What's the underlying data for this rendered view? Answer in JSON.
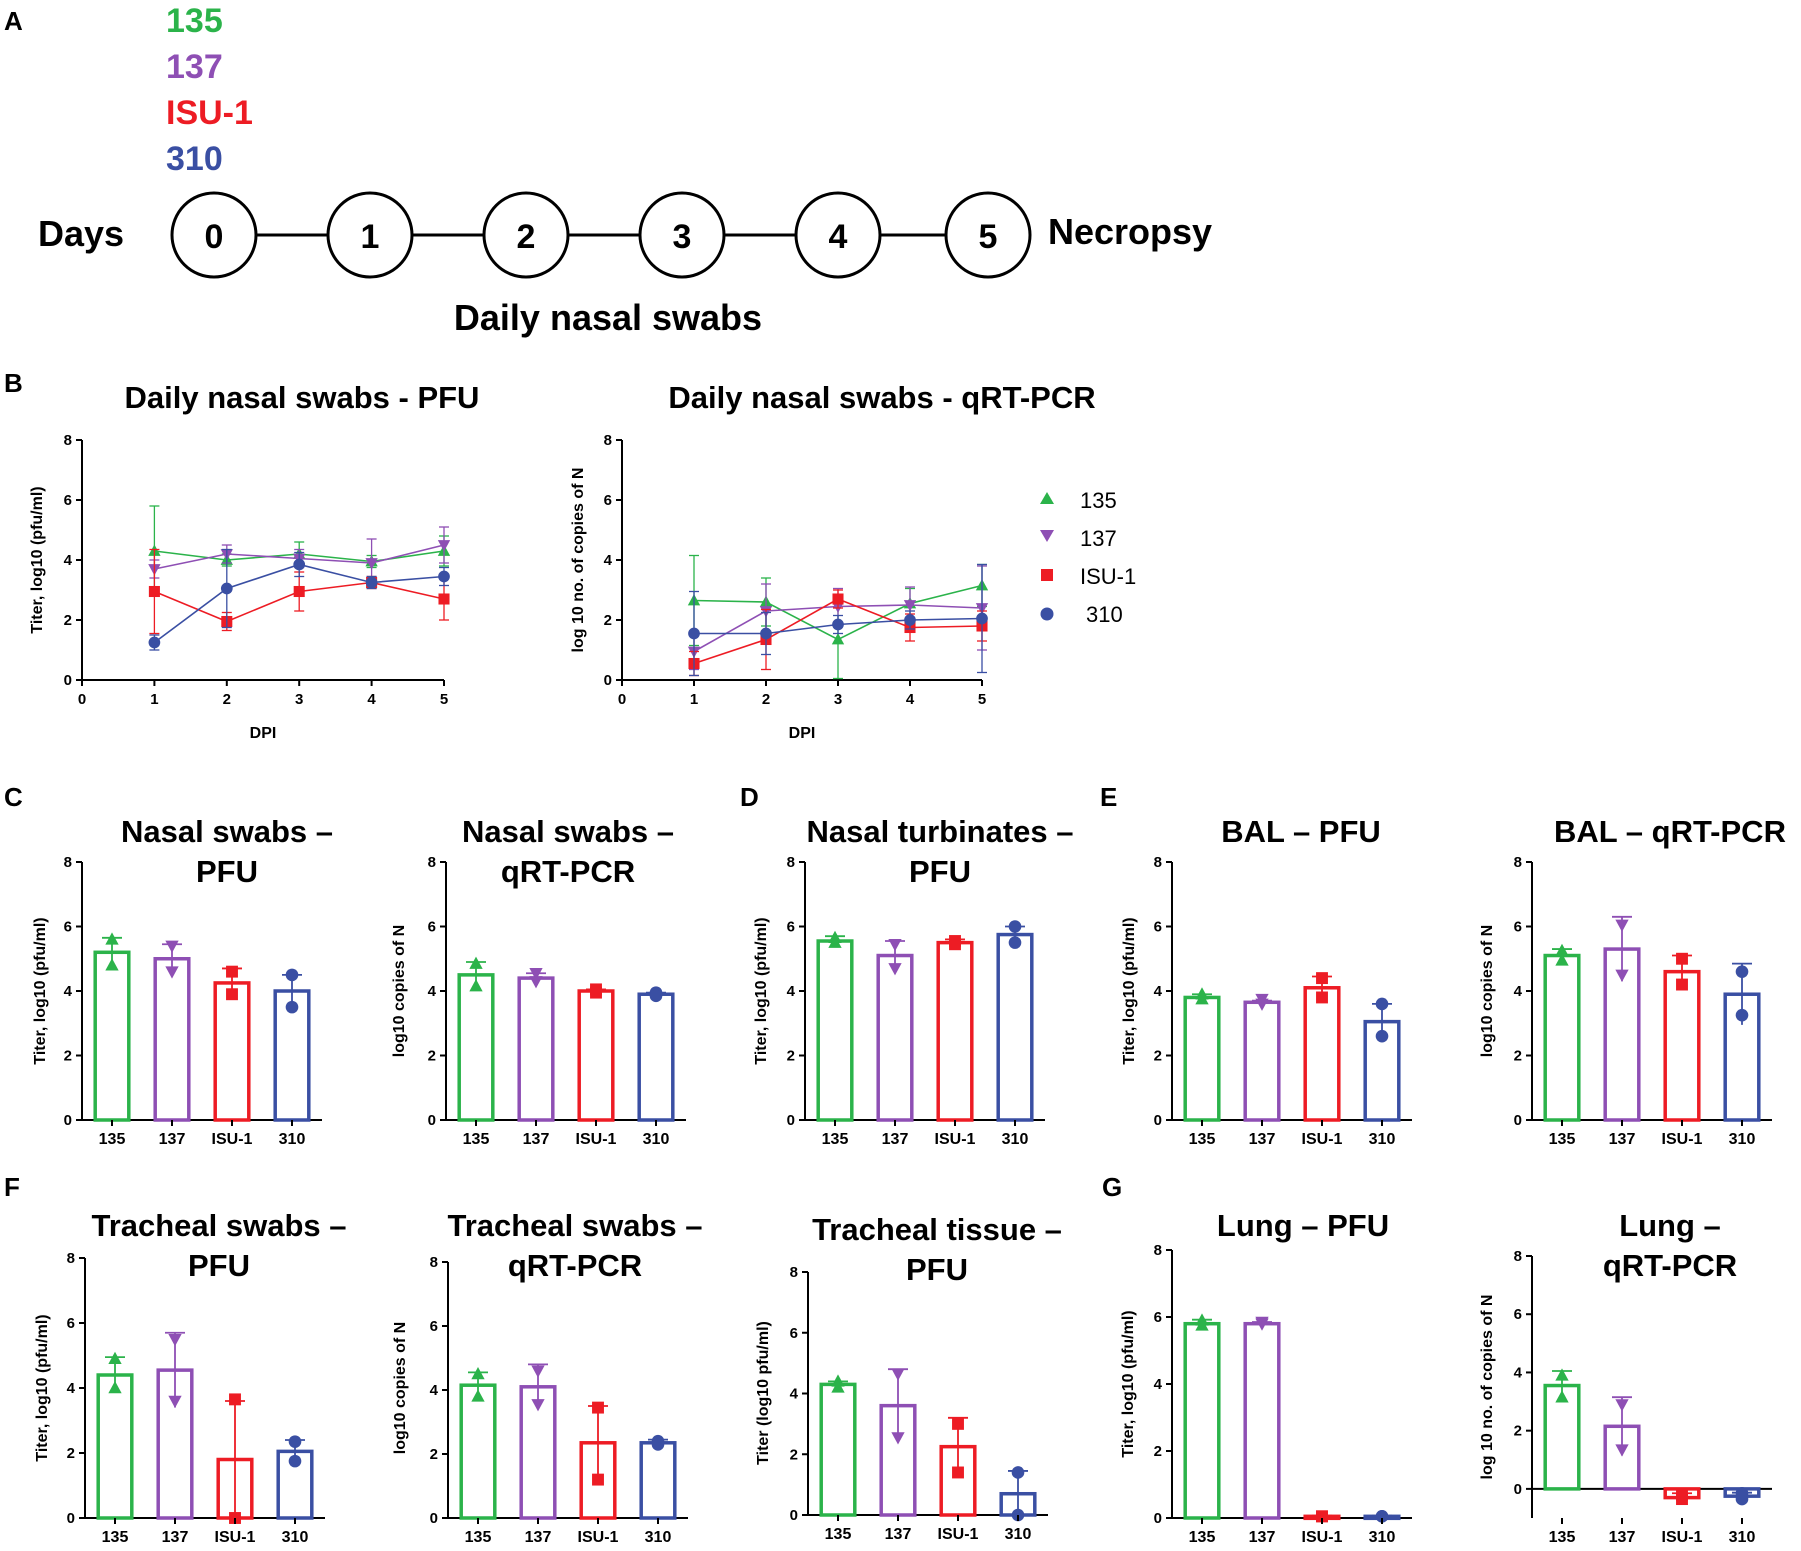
{
  "colors": {
    "g135": "#2bb34a",
    "g137": "#8e4fb4",
    "gISU": "#ed1c24",
    "g310": "#3a4fa3",
    "axis": "#000000"
  },
  "markers": {
    "g135": "triangle",
    "g137": "triangle-down",
    "gISU": "square",
    "g310": "circle"
  },
  "panel_letters": {
    "A": "A",
    "B": "B",
    "C": "C",
    "D": "D",
    "E": "E",
    "F": "F",
    "G": "G"
  },
  "timeline": {
    "strains": [
      {
        "key": "g135",
        "label": "135"
      },
      {
        "key": "g137",
        "label": "137"
      },
      {
        "key": "gISU",
        "label": "ISU-1"
      },
      {
        "key": "g310",
        "label": "310"
      }
    ],
    "days_label": "Days",
    "days": [
      "0",
      "1",
      "2",
      "3",
      "4",
      "5"
    ],
    "end_label": "Necropsy",
    "caption": "Daily nasal swabs"
  },
  "legend": [
    {
      "key": "g135",
      "label": "135"
    },
    {
      "key": "g137",
      "label": "137"
    },
    {
      "key": "gISU",
      "label": "ISU-1"
    },
    {
      "key": "g310",
      "label": "310"
    }
  ],
  "chart_data": [
    {
      "id": "B1",
      "type": "line",
      "title": "Daily nasal swabs - PFU",
      "xlabel": "DPI",
      "ylabel": "Titer, log10 (pfu/ml)",
      "x": [
        1,
        2,
        3,
        4,
        5
      ],
      "xlim": [
        0,
        5
      ],
      "ylim": [
        0,
        8
      ],
      "xticks": [
        "0",
        "1",
        "2",
        "3",
        "4",
        "5"
      ],
      "yticks": [
        "0",
        "2",
        "4",
        "6",
        "8"
      ],
      "series": [
        {
          "name": "135",
          "key": "g135",
          "values": [
            4.3,
            4.0,
            4.2,
            3.95,
            4.3
          ],
          "err": [
            1.5,
            0.2,
            0.4,
            0.2,
            0.5
          ]
        },
        {
          "name": "137",
          "key": "g137",
          "values": [
            3.7,
            4.2,
            4.05,
            3.9,
            4.5
          ],
          "err": [
            0.3,
            0.3,
            0.3,
            0.8,
            0.6
          ]
        },
        {
          "name": "ISU-1",
          "key": "gISU",
          "values": [
            2.95,
            1.95,
            2.95,
            3.25,
            2.7
          ],
          "err": [
            1.4,
            0.3,
            0.65,
            0.2,
            0.7
          ]
        },
        {
          "name": "310",
          "key": "g310",
          "values": [
            1.25,
            3.05,
            3.85,
            3.25,
            3.45
          ],
          "err": [
            0.25,
            1.3,
            0.4,
            0.2,
            0.3
          ]
        }
      ]
    },
    {
      "id": "B2",
      "type": "line",
      "title": "Daily nasal swabs - qRT-PCR",
      "xlabel": "DPI",
      "ylabel": "log 10 no. of copies of N",
      "x": [
        1,
        2,
        3,
        4,
        5
      ],
      "xlim": [
        0,
        5
      ],
      "ylim": [
        0,
        8
      ],
      "xticks": [
        "0",
        "1",
        "2",
        "3",
        "4",
        "5"
      ],
      "yticks": [
        "0",
        "2",
        "4",
        "6",
        "8"
      ],
      "series": [
        {
          "name": "135",
          "key": "g135",
          "values": [
            2.65,
            2.6,
            1.35,
            2.55,
            3.15
          ],
          "err": [
            1.5,
            0.8,
            1.3,
            0.5,
            0.7
          ]
        },
        {
          "name": "137",
          "key": "g137",
          "values": [
            0.95,
            2.3,
            2.45,
            2.5,
            2.4
          ],
          "err": [
            0.6,
            0.9,
            0.6,
            0.6,
            1.4
          ]
        },
        {
          "name": "ISU-1",
          "key": "gISU",
          "values": [
            0.55,
            1.35,
            2.7,
            1.75,
            1.8
          ],
          "err": [
            0.4,
            1.0,
            0.3,
            0.45,
            0.5
          ]
        },
        {
          "name": "310",
          "key": "g310",
          "values": [
            1.55,
            1.55,
            1.85,
            2.0,
            2.05
          ],
          "err": [
            1.4,
            0.7,
            0.3,
            0.3,
            1.8
          ]
        }
      ]
    },
    {
      "id": "C1",
      "type": "bar",
      "title": [
        "Nasal swabs –",
        "PFU"
      ],
      "ylabel": "Titer, log10 (pfu/ml)",
      "ylim": [
        0,
        8
      ],
      "yticks": [
        "0",
        "2",
        "4",
        "6",
        "8"
      ],
      "categories": [
        "135",
        "137",
        "ISU-1",
        "310"
      ],
      "values": [
        5.2,
        5.0,
        4.25,
        4.0
      ],
      "err": [
        0.45,
        0.45,
        0.45,
        0.5
      ],
      "points": [
        [
          5.6,
          4.8
        ],
        [
          5.4,
          4.6
        ],
        [
          4.6,
          3.9
        ],
        [
          4.5,
          3.5
        ]
      ]
    },
    {
      "id": "C2",
      "type": "bar",
      "title": [
        "Nasal swabs –",
        "qRT-PCR"
      ],
      "ylabel": "log10 copies of N",
      "ylim": [
        0,
        8
      ],
      "yticks": [
        "0",
        "2",
        "4",
        "6",
        "8"
      ],
      "categories": [
        "135",
        "137",
        "ISU-1",
        "310"
      ],
      "values": [
        4.5,
        4.4,
        4.0,
        3.9
      ],
      "err": [
        0.4,
        0.15,
        0.05,
        0.05
      ],
      "points": [
        [
          4.85,
          4.15
        ],
        [
          4.55,
          4.3
        ],
        [
          4.05,
          3.95
        ],
        [
          3.95,
          3.85
        ]
      ]
    },
    {
      "id": "D",
      "type": "bar",
      "title": [
        "Nasal turbinates –",
        "PFU"
      ],
      "ylabel": "Titer, log10 (pfu/ml)",
      "ylim": [
        0,
        8
      ],
      "yticks": [
        "0",
        "2",
        "4",
        "6",
        "8"
      ],
      "categories": [
        "135",
        "137",
        "ISU-1",
        "310"
      ],
      "values": [
        5.55,
        5.1,
        5.5,
        5.75
      ],
      "err": [
        0.15,
        0.45,
        0.1,
        0.25
      ],
      "points": [
        [
          5.65,
          5.5
        ],
        [
          5.45,
          4.7
        ],
        [
          5.55,
          5.45
        ],
        [
          6.0,
          5.5
        ]
      ]
    },
    {
      "id": "E1",
      "type": "bar",
      "title": [
        "BAL – PFU"
      ],
      "ylabel": "Titer, log10 (pfu/ml)",
      "ylim": [
        0,
        8
      ],
      "yticks": [
        "0",
        "2",
        "4",
        "6",
        "8"
      ],
      "categories": [
        "135",
        "137",
        "ISU-1",
        "310"
      ],
      "values": [
        3.8,
        3.65,
        4.1,
        3.05
      ],
      "err": [
        0.1,
        0.05,
        0.35,
        0.55
      ],
      "points": [
        [
          3.9,
          3.75
        ],
        [
          3.75,
          3.6
        ],
        [
          4.4,
          3.8
        ],
        [
          3.6,
          2.6
        ]
      ]
    },
    {
      "id": "E2",
      "type": "bar",
      "title": [
        "BAL – qRT-PCR"
      ],
      "ylabel": "log10 copies of N",
      "ylim": [
        0,
        8
      ],
      "yticks": [
        "0",
        "2",
        "4",
        "6",
        "8"
      ],
      "categories": [
        "135",
        "137",
        "ISU-1",
        "310"
      ],
      "values": [
        5.1,
        5.3,
        4.6,
        3.9
      ],
      "err": [
        0.2,
        1.0,
        0.5,
        0.95
      ],
      "points": [
        [
          5.25,
          4.95
        ],
        [
          6.05,
          4.5
        ],
        [
          5.0,
          4.2
        ],
        [
          4.6,
          3.25
        ]
      ]
    },
    {
      "id": "F1",
      "type": "bar",
      "title": [
        "Tracheal swabs –",
        "PFU"
      ],
      "ylabel": "Titer, log10 (pfu/ml)",
      "ylim": [
        0,
        8
      ],
      "yticks": [
        "0",
        "2",
        "4",
        "6",
        "8"
      ],
      "categories": [
        "135",
        "137",
        "ISU-1",
        "310"
      ],
      "values": [
        4.4,
        4.55,
        1.8,
        2.05
      ],
      "err": [
        0.55,
        1.15,
        1.8,
        0.35
      ],
      "points": [
        [
          4.9,
          4.0
        ],
        [
          5.5,
          3.6
        ],
        [
          3.65,
          0.0
        ],
        [
          2.35,
          1.75
        ]
      ]
    },
    {
      "id": "F2",
      "type": "bar",
      "title": [
        "Tracheal swabs –",
        "qRT-PCR"
      ],
      "ylabel": "log10 copies of N",
      "ylim": [
        0,
        8
      ],
      "yticks": [
        "0",
        "2",
        "4",
        "6",
        "8"
      ],
      "categories": [
        "135",
        "137",
        "ISU-1",
        "310"
      ],
      "values": [
        4.15,
        4.1,
        2.35,
        2.35
      ],
      "err": [
        0.4,
        0.7,
        1.15,
        0.1
      ],
      "points": [
        [
          4.5,
          3.8
        ],
        [
          4.6,
          3.55
        ],
        [
          3.45,
          1.2
        ],
        [
          2.4,
          2.3
        ]
      ]
    },
    {
      "id": "F3",
      "type": "bar",
      "title": [
        "Tracheal tissue –",
        "PFU"
      ],
      "ylabel": "Titer (log10 pfu/ml)",
      "ylim": [
        0,
        8
      ],
      "yticks": [
        "0",
        "2",
        "4",
        "6",
        "8"
      ],
      "categories": [
        "135",
        "137",
        "ISU-1",
        "310"
      ],
      "values": [
        4.3,
        3.6,
        2.25,
        0.7
      ],
      "err": [
        0.1,
        1.2,
        0.95,
        0.75
      ],
      "points": [
        [
          4.4,
          4.2
        ],
        [
          4.65,
          2.55
        ],
        [
          3.0,
          1.4
        ],
        [
          1.4,
          0.0
        ]
      ]
    },
    {
      "id": "G1",
      "type": "bar",
      "title": [
        "Lung – PFU"
      ],
      "ylabel": "Titer, log10 (pfu/ml)",
      "ylim": [
        0,
        8
      ],
      "yticks": [
        "0",
        "2",
        "4",
        "6",
        "8"
      ],
      "categories": [
        "135",
        "137",
        "ISU-1",
        "310"
      ],
      "values": [
        5.8,
        5.8,
        0.05,
        0.05
      ],
      "err": [
        0.12,
        0.05,
        0.02,
        0.02
      ],
      "points": [
        [
          5.9,
          5.75
        ],
        [
          5.85,
          5.8
        ],
        [
          0.05,
          0.05
        ],
        [
          0.05,
          0.05
        ]
      ]
    },
    {
      "id": "G2",
      "type": "bar",
      "title": [
        "Lung –",
        "qRT-PCR"
      ],
      "ylabel": "log 10 no. of copies of N",
      "ylim": [
        -1,
        8
      ],
      "yticks": [
        "0",
        "2",
        "4",
        "6",
        "8"
      ],
      "categories": [
        "135",
        "137",
        "ISU-1",
        "310"
      ],
      "values": [
        3.55,
        2.15,
        -0.3,
        -0.25
      ],
      "err": [
        0.5,
        1.0,
        0.15,
        0.12
      ],
      "points": [
        [
          3.9,
          3.15
        ],
        [
          2.9,
          1.35
        ],
        [
          -0.2,
          -0.35
        ],
        [
          -0.15,
          -0.35
        ]
      ]
    }
  ]
}
